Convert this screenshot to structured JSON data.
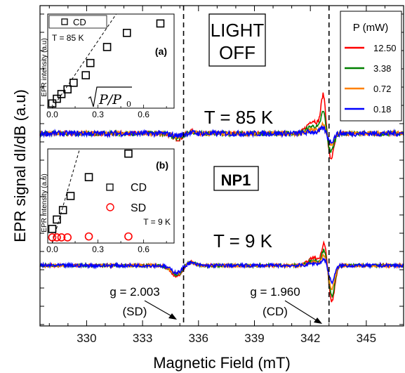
{
  "chart_data": {
    "type": "line",
    "xlabel": "Magnetic Field  (mT)",
    "ylabel": "EPR signal dI/dB (a.u)",
    "xlim": [
      327.5,
      347
    ],
    "x_ticks": [
      "330",
      "333",
      "336",
      "339",
      "342",
      "345"
    ],
    "grid": false,
    "legend": {
      "title": "P (mW)",
      "position": "top-right",
      "entries": [
        {
          "label": "12.50",
          "color": "#ff0000"
        },
        {
          "label": "3.38",
          "color": "#008000"
        },
        {
          "label": "0.72",
          "color": "#ff8000"
        },
        {
          "label": "0.18",
          "color": "#0000ff"
        }
      ]
    },
    "annotations": {
      "light_off": [
        "LIGHT",
        "OFF"
      ],
      "temp_85": "T = 85 K",
      "temp_9": "T = 9 K",
      "sample": "NP1",
      "g_sd": "g = 2.003",
      "sd": "(SD)",
      "g_cd": "g = 1.960",
      "cd": "(CD)"
    },
    "dashed_lines_x": [
      335.2,
      343.0
    ],
    "series_85K": {
      "baseline": 0,
      "features": [
        {
          "center": 335.25,
          "kind": "sd",
          "amp": [
            -0.9,
            -0.7,
            -0.5,
            -0.35
          ]
        },
        {
          "center": 342.75,
          "kind": "cd",
          "pos": [
            5.8,
            3.3,
            1.5,
            0.8
          ],
          "neg": [
            -4.0,
            -2.9,
            -1.8,
            -1.3
          ]
        }
      ]
    },
    "series_9K": {
      "baseline": 0,
      "features": [
        {
          "center": 335.2,
          "kind": "sd",
          "amp": [
            -1.7,
            -1.5,
            -1.3,
            -1.1
          ]
        },
        {
          "center": 342.8,
          "kind": "cd",
          "pos": [
            3.5,
            2.4,
            1.6,
            1.0
          ],
          "neg": [
            -5.7,
            -4.8,
            -3.7,
            -2.6
          ]
        }
      ]
    },
    "inset_a": {
      "label": "(a)",
      "ylabel": "EPR intensity (a.u)",
      "legend": "CD",
      "temp": "T = 85 K",
      "x_ticks": [
        "0.0",
        "0.3",
        "0.6"
      ],
      "xlim": [
        -0.03,
        0.8
      ],
      "ylim": [
        0,
        1.0
      ],
      "xlabel_math": "P/P",
      "xlabel_sub": "0",
      "cd_points": [
        [
          0.0,
          0.05
        ],
        [
          0.03,
          0.1
        ],
        [
          0.06,
          0.15
        ],
        [
          0.1,
          0.2
        ],
        [
          0.14,
          0.27
        ],
        [
          0.22,
          0.35
        ],
        [
          0.25,
          0.48
        ],
        [
          0.36,
          0.65
        ],
        [
          0.49,
          0.8
        ],
        [
          0.71,
          0.9
        ]
      ],
      "dashed_line": [
        [
          0.0,
          0.0
        ],
        [
          0.42,
          1.0
        ]
      ]
    },
    "inset_b": {
      "label": "(b)",
      "ylabel": "EPR intensity (a.u)",
      "legend": [
        "CD",
        "SD"
      ],
      "temp": "T = 9 K",
      "x_ticks": [
        "0.0",
        "0.3",
        "0.6"
      ],
      "xlim": [
        -0.03,
        0.8
      ],
      "ylim": [
        0,
        1.0
      ],
      "cd_points": [
        [
          0.0,
          0.15
        ],
        [
          0.03,
          0.25
        ],
        [
          0.07,
          0.35
        ],
        [
          0.12,
          0.5
        ],
        [
          0.24,
          0.7
        ],
        [
          0.5,
          0.95
        ]
      ],
      "sd_points": [
        [
          0.0,
          0.06
        ],
        [
          0.03,
          0.06
        ],
        [
          0.06,
          0.06
        ],
        [
          0.1,
          0.06
        ],
        [
          0.24,
          0.07
        ],
        [
          0.5,
          0.07
        ]
      ],
      "dashed_line": [
        [
          0.0,
          0.0
        ],
        [
          0.18,
          1.0
        ]
      ]
    }
  }
}
